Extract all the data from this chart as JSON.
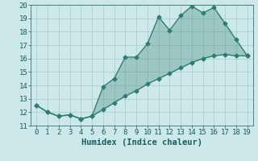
{
  "xlabel": "Humidex (Indice chaleur)",
  "x_values": [
    0,
    1,
    2,
    3,
    4,
    5,
    6,
    7,
    8,
    9,
    10,
    11,
    12,
    13,
    14,
    15,
    16,
    17,
    18,
    19
  ],
  "upper_line": [
    12.5,
    12.0,
    11.7,
    11.8,
    11.5,
    11.7,
    13.9,
    14.5,
    16.1,
    16.1,
    17.1,
    19.1,
    18.1,
    19.2,
    19.9,
    19.4,
    19.8,
    18.6,
    17.4,
    16.2
  ],
  "lower_line": [
    12.5,
    12.0,
    11.7,
    11.8,
    11.5,
    11.7,
    12.2,
    12.7,
    13.2,
    13.6,
    14.1,
    14.5,
    14.9,
    15.3,
    15.7,
    16.0,
    16.2,
    16.3,
    16.2,
    16.2
  ],
  "line_color": "#2e7d6e",
  "fill_color": "#2e7d6e",
  "bg_color": "#cce8e8",
  "grid_color": "#aad0d0",
  "text_color": "#1a5c5c",
  "ylim": [
    11,
    20
  ],
  "xlim": [
    -0.5,
    19.5
  ],
  "yticks": [
    11,
    12,
    13,
    14,
    15,
    16,
    17,
    18,
    19,
    20
  ],
  "xticks": [
    0,
    1,
    2,
    3,
    4,
    5,
    6,
    7,
    8,
    9,
    10,
    11,
    12,
    13,
    14,
    15,
    16,
    17,
    18,
    19
  ],
  "marker": "D",
  "markersize": 2.5,
  "linewidth": 1.0,
  "font_size": 6.5,
  "label_fontsize": 7.5,
  "fill_alpha": 0.3
}
